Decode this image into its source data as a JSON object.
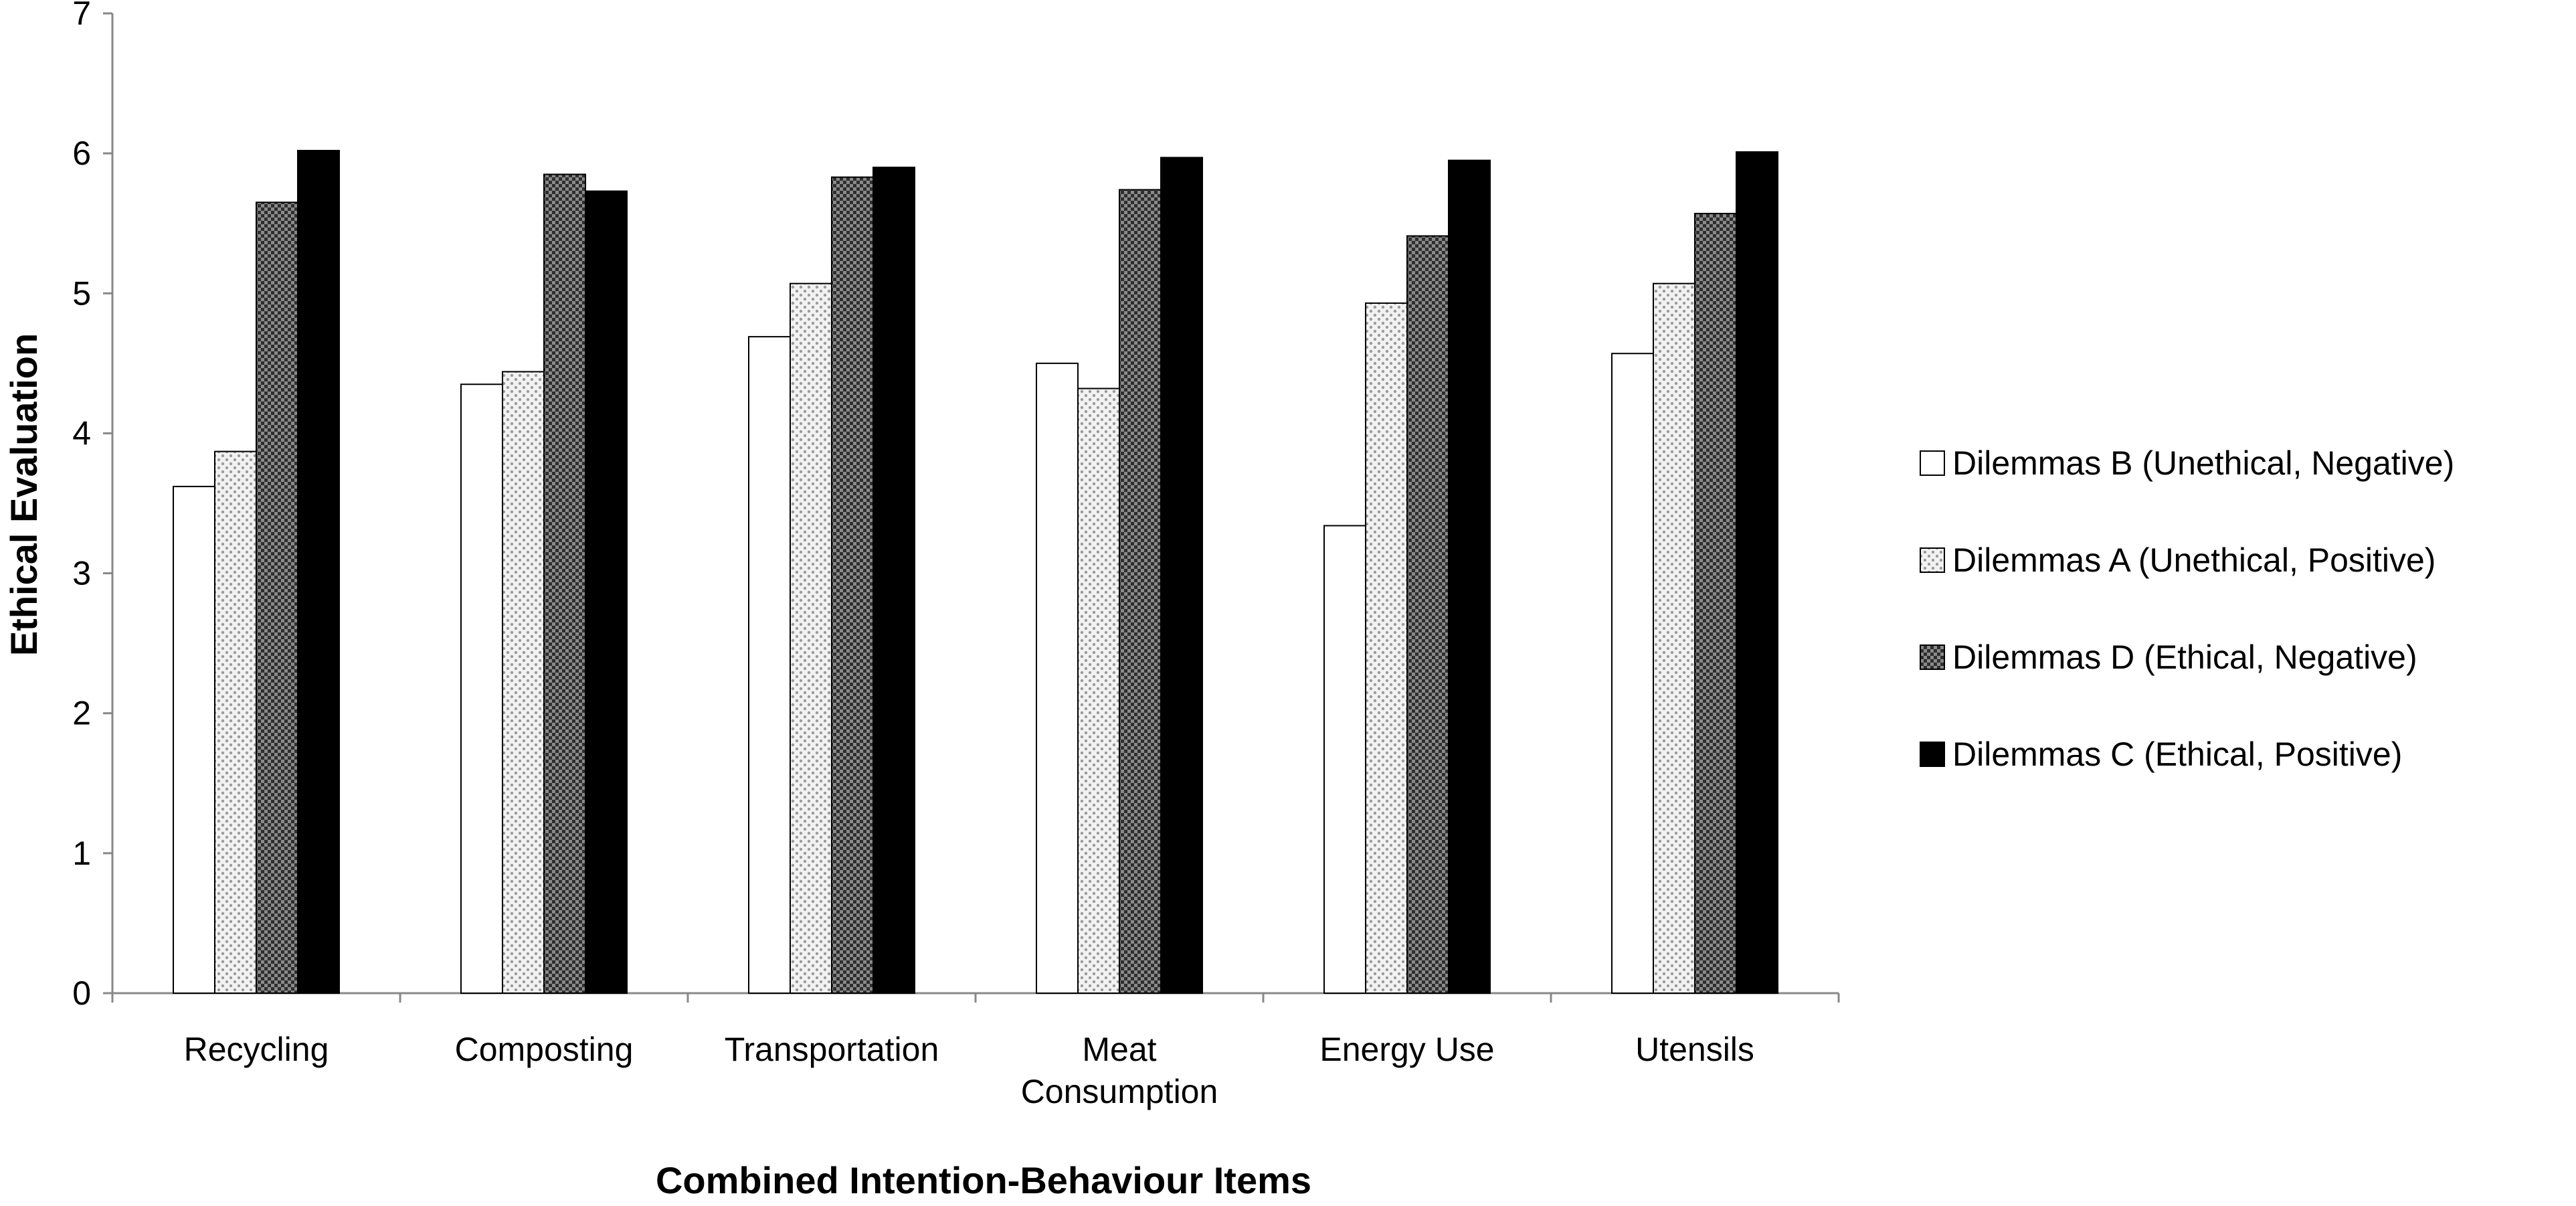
{
  "chart_data": {
    "type": "bar",
    "title": "",
    "xlabel": "Combined Intention-Behaviour Items",
    "ylabel": "Ethical Evaluation",
    "ylim": [
      0,
      7
    ],
    "yticks": [
      "0",
      "1",
      "2",
      "3",
      "4",
      "5",
      "6",
      "7"
    ],
    "grid": false,
    "legend_position": "right",
    "categories": [
      [
        "Recycling"
      ],
      [
        "Composting"
      ],
      [
        "Transportation"
      ],
      [
        "Meat",
        "Consumption"
      ],
      [
        "Energy Use"
      ],
      [
        "Utensils"
      ]
    ],
    "series": [
      {
        "name": "Dilemmas B (Unethical, Negative)",
        "fill": "white",
        "values": [
          3.62,
          4.35,
          4.69,
          4.5,
          3.34,
          4.57
        ]
      },
      {
        "name": "Dilemmas A (Unethical, Positive)",
        "fill": "light-dotted",
        "values": [
          3.87,
          4.44,
          5.07,
          4.32,
          4.93,
          5.07
        ]
      },
      {
        "name": "Dilemmas D (Ethical, Negative)",
        "fill": "dark-checkered",
        "values": [
          5.65,
          5.85,
          5.83,
          5.74,
          5.41,
          5.57
        ]
      },
      {
        "name": "Dilemmas C (Ethical, Positive)",
        "fill": "black",
        "values": [
          6.02,
          5.73,
          5.9,
          5.97,
          5.95,
          6.01
        ]
      }
    ]
  }
}
